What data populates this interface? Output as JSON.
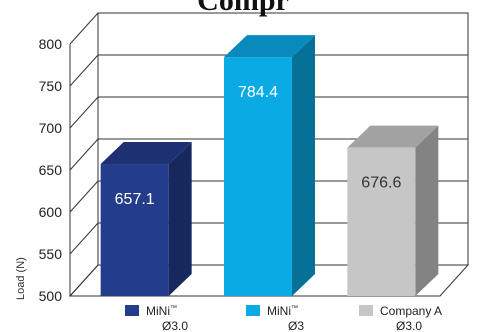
{
  "chart_data": {
    "type": "bar",
    "title": "Compr",
    "ylabel": "Load (N)",
    "ylim": [
      500,
      800
    ],
    "yticks": [
      500,
      550,
      600,
      650,
      700,
      750,
      800
    ],
    "categories": [
      {
        "name": "MiNi",
        "mark": "™",
        "sub": "Ø3.0"
      },
      {
        "name": "MiNi",
        "mark": "™",
        "sub": "Ø3"
      },
      {
        "name": "Company A",
        "mark": "",
        "sub": "Ø3.0"
      }
    ],
    "values": [
      657.1,
      784.4,
      676.6
    ],
    "value_labels": [
      "657.1",
      "784.4",
      "676.6"
    ],
    "colors": [
      "#233c8b",
      "#0aaae5",
      "#c6c6c6"
    ],
    "label_colors": [
      "#ffffff",
      "#ffffff",
      "#333333"
    ],
    "grid": true,
    "legend_position": "bottom"
  }
}
